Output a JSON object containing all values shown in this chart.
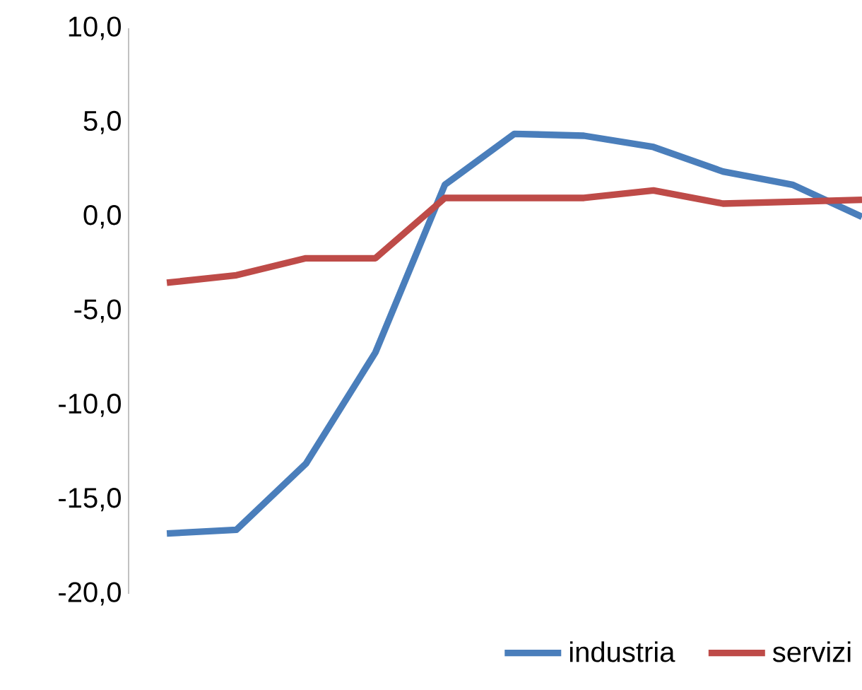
{
  "chart_data": {
    "type": "line",
    "categories": [
      null,
      null,
      null,
      null,
      null,
      null,
      null,
      null,
      null,
      null,
      null
    ],
    "series": [
      {
        "name": "industria",
        "color": "#4a7ebb",
        "values": [
          -16.8,
          -16.6,
          -13.1,
          -7.2,
          1.7,
          4.4,
          4.3,
          3.7,
          2.4,
          1.7,
          0.0
        ]
      },
      {
        "name": "servizi",
        "color": "#be4b48",
        "values": [
          -3.5,
          -3.1,
          -2.2,
          -2.2,
          1.0,
          1.0,
          1.0,
          1.4,
          0.7,
          0.8,
          0.9
        ]
      }
    ],
    "ylim": [
      -20,
      10
    ],
    "yticks": [
      {
        "value": -20,
        "label": "-20,0"
      },
      {
        "value": -15,
        "label": "-15,0"
      },
      {
        "value": -10,
        "label": "-10,0"
      },
      {
        "value": -5,
        "label": "-5,0"
      },
      {
        "value": 0,
        "label": "0,0"
      },
      {
        "value": 5,
        "label": "5,0"
      },
      {
        "value": 10,
        "label": "10,0"
      }
    ],
    "legend": "bottom right",
    "tick_labels": "y",
    "grid": false
  }
}
